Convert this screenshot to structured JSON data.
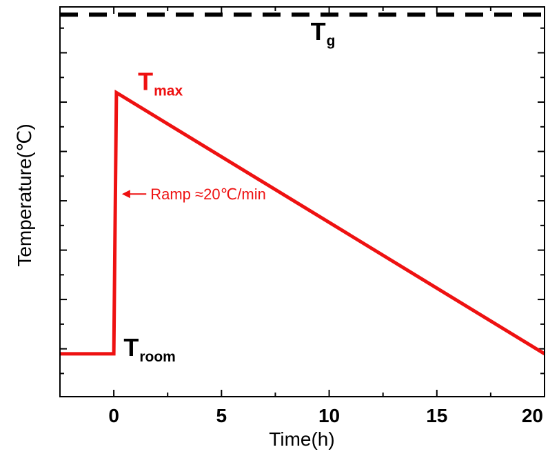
{
  "chart_data": {
    "type": "line",
    "title": "",
    "xlabel": "Time(h)",
    "ylabel": "Temperature(℃)",
    "xlim": [
      -2.5,
      20
    ],
    "ylim": [
      0,
      100
    ],
    "x_ticks": [
      0,
      5,
      10,
      15,
      20
    ],
    "x_tick_labels": [
      "0",
      "5",
      "10",
      "15",
      "20"
    ],
    "y_tick_labels_shown": false,
    "grid": false,
    "legend": "none",
    "series": [
      {
        "color": "#ee1111",
        "points": [
          {
            "x": -2.5,
            "y": 11
          },
          {
            "x": 0,
            "y": 11
          },
          {
            "x": 0.12,
            "y": 78
          },
          {
            "x": 20,
            "y": 11
          }
        ]
      }
    ],
    "reference_lines": [
      {
        "kind": "horizontal",
        "y": 98,
        "style": "dashed",
        "color": "#000000"
      }
    ],
    "annotations": [
      {
        "id": "tg",
        "base": "T",
        "sub": "g",
        "x": 9.3,
        "y": 100,
        "color": "#000000"
      },
      {
        "id": "tmax",
        "base": "T",
        "sub": "max",
        "x": 0.8,
        "y": 84,
        "color": "#ee1111"
      },
      {
        "id": "troom",
        "base": "T",
        "sub": "room",
        "x": 0.2,
        "y": 11,
        "color": "#000000"
      }
    ],
    "ramp_note": {
      "text": "Ramp ≈20℃/min",
      "x": 1.7,
      "y": 52,
      "color": "#ee1111"
    }
  }
}
